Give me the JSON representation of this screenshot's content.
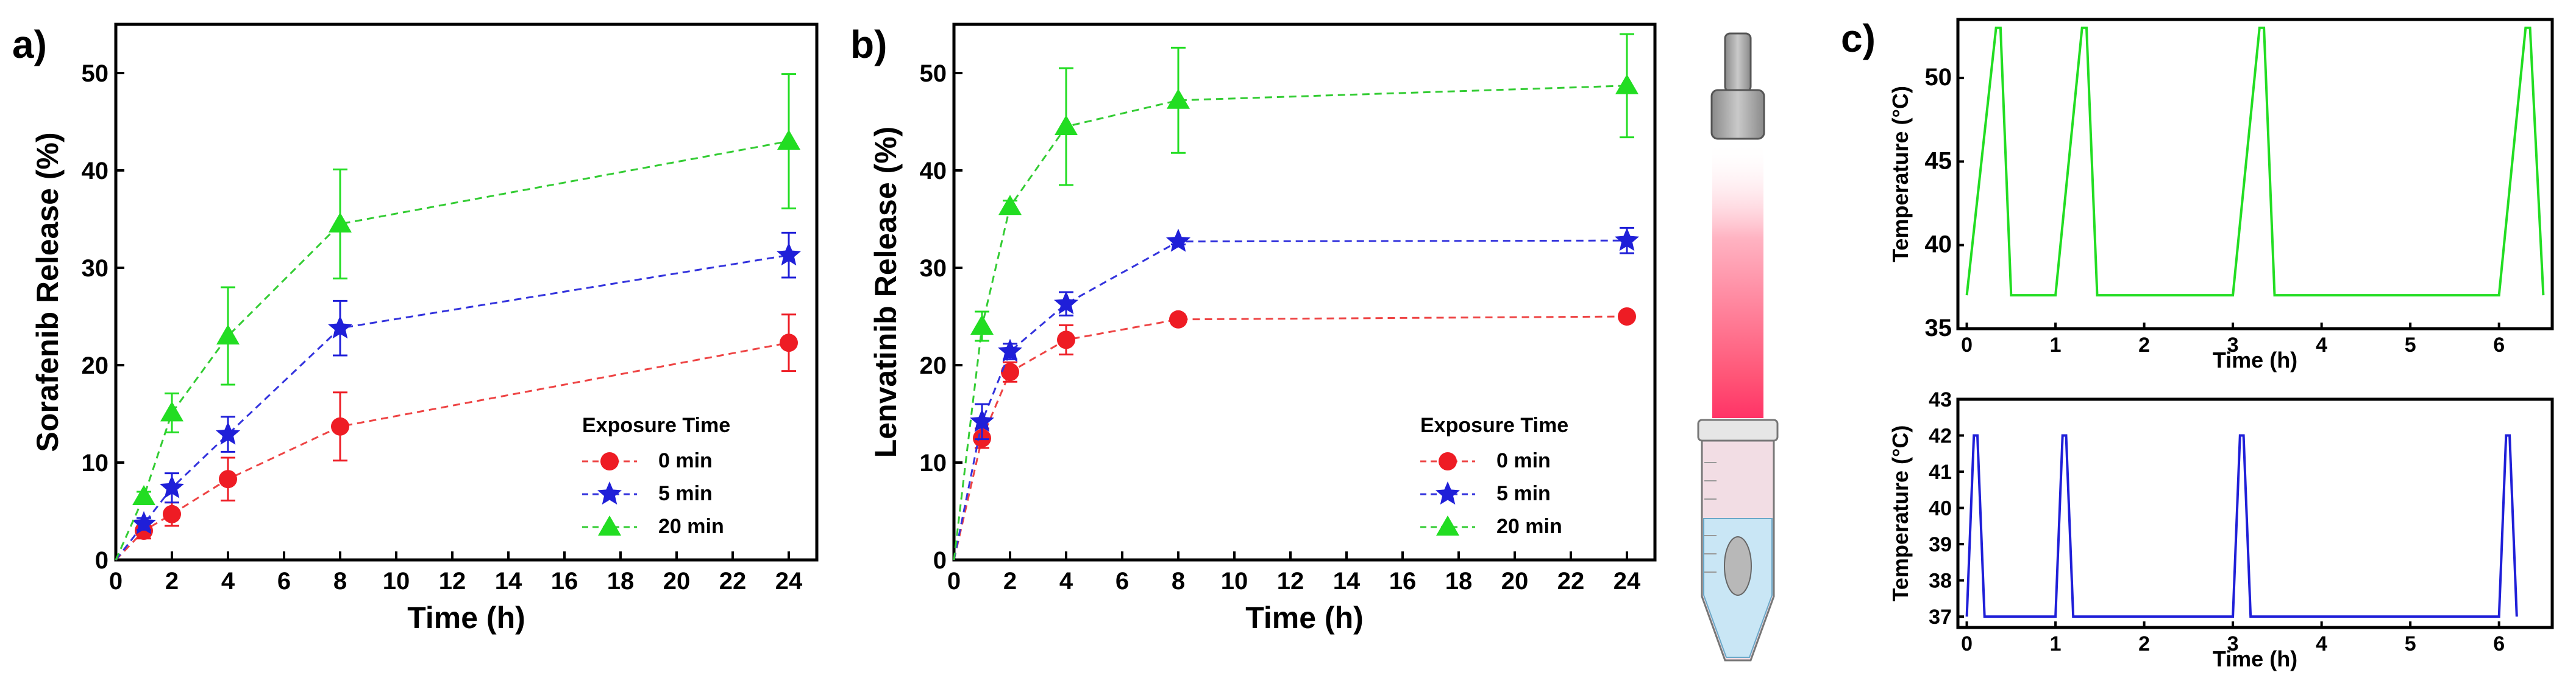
{
  "figure": {
    "panel_a_label": "a)",
    "panel_b_label": "b)",
    "panel_c_label": "c)"
  },
  "colors": {
    "s0": "#ee1c24",
    "s5": "#1f1fd8",
    "s20": "#22dd22",
    "dash_red": "#ee4444",
    "dash_blue": "#3333dd",
    "dash_green": "#33cc33"
  },
  "chart_data": [
    {
      "id": "a",
      "type": "line",
      "xlabel": "Time (h)",
      "ylabel": "Sorafenib Release (%)",
      "xlim": [
        0,
        25
      ],
      "ylim": [
        0,
        55
      ],
      "xticks": [
        0,
        2,
        4,
        6,
        8,
        10,
        12,
        14,
        16,
        18,
        20,
        22,
        24
      ],
      "yticks": [
        0,
        10,
        20,
        30,
        40,
        50
      ],
      "legend_title": "Exposure Time",
      "legend_position": "bottom-right",
      "x": [
        0,
        1,
        2,
        4,
        8,
        24
      ],
      "series": [
        {
          "name": "0   min",
          "marker": "circle",
          "values": [
            0,
            3.0,
            4.7,
            8.3,
            13.7,
            22.3
          ],
          "errors": [
            0,
            0.8,
            1.2,
            2.2,
            3.5,
            2.9
          ]
        },
        {
          "name": "5   min",
          "marker": "star",
          "values": [
            0,
            3.7,
            7.4,
            12.9,
            23.8,
            31.3
          ],
          "errors": [
            0,
            0.6,
            1.5,
            1.8,
            2.8,
            2.3
          ]
        },
        {
          "name": "20 min",
          "marker": "triangle",
          "values": [
            0,
            6.5,
            15.1,
            23.0,
            34.5,
            43.0
          ],
          "errors": [
            0,
            0.5,
            2.0,
            5.0,
            5.6,
            6.9
          ]
        }
      ]
    },
    {
      "id": "b",
      "type": "line",
      "xlabel": "Time (h)",
      "ylabel": "Lenvatinib Release (%)",
      "xlim": [
        0,
        25
      ],
      "ylim": [
        0,
        55
      ],
      "xticks": [
        0,
        2,
        4,
        6,
        8,
        10,
        12,
        14,
        16,
        18,
        20,
        22,
        24
      ],
      "yticks": [
        0,
        10,
        20,
        30,
        40,
        50
      ],
      "legend_title": "Exposure Time",
      "legend_position": "bottom-right",
      "x": [
        0,
        1,
        2,
        4,
        8,
        24
      ],
      "series": [
        {
          "name": "0   min",
          "marker": "circle",
          "values": [
            0,
            12.5,
            19.3,
            22.6,
            24.7,
            25.0
          ],
          "errors": [
            0,
            1.0,
            1.0,
            1.5,
            0.5,
            0.5
          ]
        },
        {
          "name": "5   min",
          "marker": "star",
          "values": [
            0,
            14.2,
            21.4,
            26.3,
            32.7,
            32.8
          ],
          "errors": [
            0,
            1.8,
            0.8,
            1.2,
            0.3,
            1.3
          ]
        },
        {
          "name": "20 min",
          "marker": "triangle",
          "values": [
            0,
            24.0,
            36.3,
            44.5,
            47.2,
            48.7
          ],
          "errors": [
            0,
            1.5,
            0.6,
            6.0,
            5.4,
            5.3
          ]
        }
      ]
    },
    {
      "id": "c-top",
      "type": "line",
      "xlabel": "Time (h)",
      "ylabel": "Temperature (°C)",
      "xlim": [
        -0.1,
        6.6
      ],
      "ylim": [
        35,
        53.5
      ],
      "xticks": [
        0,
        1,
        2,
        3,
        4,
        5,
        6
      ],
      "yticks": [
        35,
        40,
        45,
        50
      ],
      "series": [
        {
          "name": "temperature",
          "x": [
            0,
            0.33,
            0.38,
            0.5,
            1.0,
            1.3,
            1.35,
            1.47,
            3.0,
            3.3,
            3.35,
            3.47,
            6.0,
            6.3,
            6.35,
            6.5
          ],
          "values": [
            37,
            53,
            53,
            37,
            37,
            53,
            53,
            37,
            37,
            53,
            53,
            37,
            37,
            53,
            53,
            37
          ]
        }
      ]
    },
    {
      "id": "c-bottom",
      "type": "line",
      "xlabel": "Time (h)",
      "ylabel": "Temperature (°C)",
      "xlim": [
        -0.1,
        6.6
      ],
      "ylim": [
        36.7,
        43
      ],
      "xticks": [
        0,
        1,
        2,
        3,
        4,
        5,
        6
      ],
      "yticks": [
        37,
        38,
        39,
        40,
        41,
        42,
        43
      ],
      "series": [
        {
          "name": "temperature",
          "x": [
            0,
            0.08,
            0.12,
            0.2,
            1.0,
            1.08,
            1.12,
            1.2,
            3.0,
            3.08,
            3.12,
            3.2,
            6.0,
            6.08,
            6.12,
            6.2
          ],
          "values": [
            37,
            42,
            42,
            37,
            37,
            42,
            42,
            37,
            37,
            42,
            42,
            37,
            37,
            42,
            42,
            37
          ]
        }
      ]
    }
  ]
}
